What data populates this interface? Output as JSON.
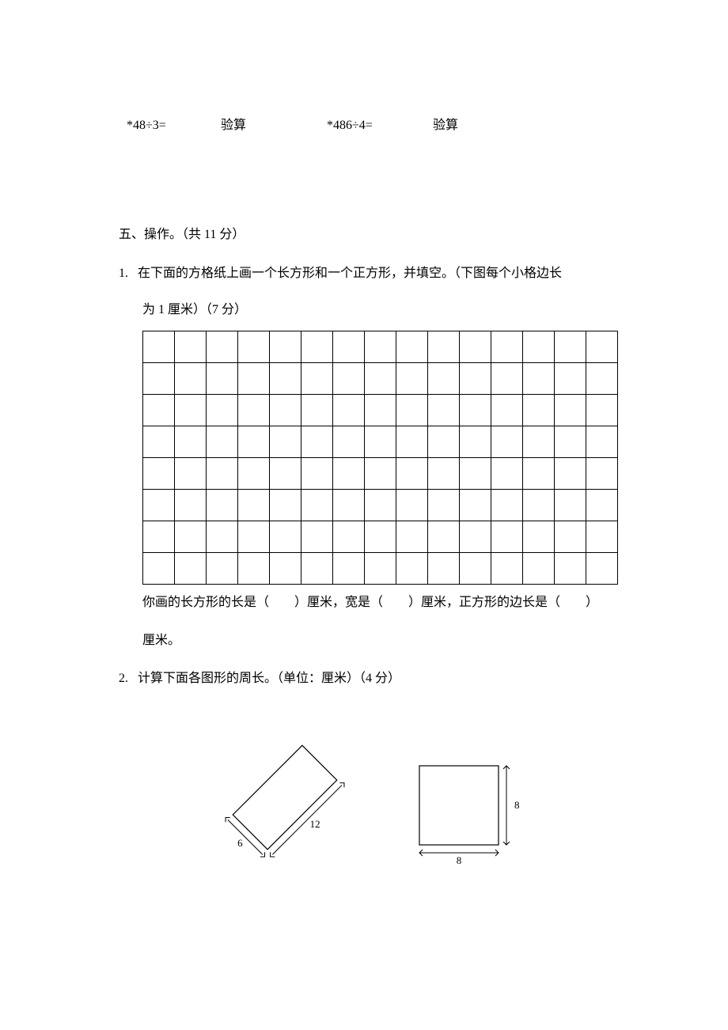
{
  "problems": {
    "p1": "*48÷3=",
    "check1": "验算",
    "p2": "*486÷4=",
    "check2": "验算"
  },
  "section5": {
    "title": "五、操作。（共 11 分）",
    "q1": {
      "num": "1.",
      "text": "在下面的方格纸上画一个长方形和一个正方形，并填空。（下图每个小格边长",
      "text2": "为 1 厘米）（7 分）",
      "fill": "你画的长方形的长是（　　）厘米，宽是（　　）厘米，正方形的边长是（　　）",
      "fill2": "厘米。"
    },
    "q2": {
      "num": "2.",
      "text": "计算下面各图形的周长。（单位：厘米）（4 分）"
    }
  },
  "grid": {
    "rows": 8,
    "cols": 15,
    "cell_size": 40,
    "border_color": "#000000"
  },
  "shapes": {
    "rectangle": {
      "type": "rotated-rectangle",
      "width_label": "6",
      "length_label": "12",
      "stroke": "#000000",
      "stroke_width": 1
    },
    "square": {
      "type": "square",
      "side_label_h": "8",
      "side_label_v": "8",
      "stroke": "#000000",
      "stroke_width": 1
    }
  }
}
